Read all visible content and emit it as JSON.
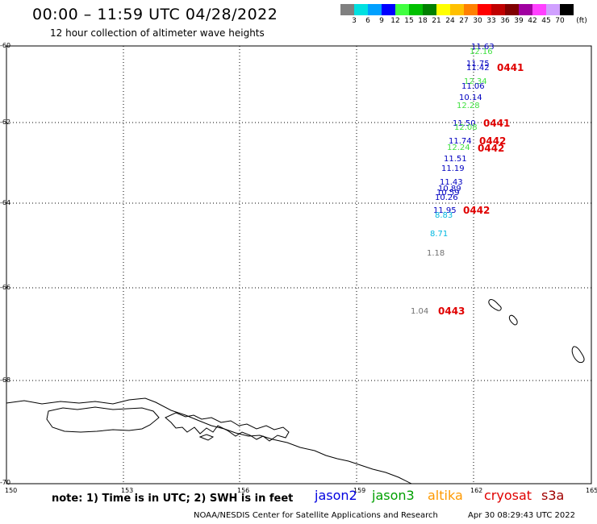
{
  "header": {
    "title": "00:00 – 11:59 UTC 04/28/2022",
    "subtitle": "12 hour collection of altimeter wave heights"
  },
  "legend": {
    "unit": "(ft)",
    "colors": [
      "#808080",
      "#00e0e0",
      "#00a0ff",
      "#0000ff",
      "#40ff40",
      "#00c000",
      "#008000",
      "#ffff00",
      "#ffc000",
      "#ff8000",
      "#ff0000",
      "#c00000",
      "#800000",
      "#a000a0",
      "#ff40ff",
      "#d0a0ff",
      "#000000"
    ],
    "labels": [
      "3",
      "6",
      "9",
      "12",
      "15",
      "18",
      "21",
      "24",
      "27",
      "30",
      "33",
      "36",
      "39",
      "42",
      "45",
      "70"
    ]
  },
  "axes": {
    "lon_ticks": [
      "150",
      "153",
      "156",
      "159",
      "162",
      "165"
    ],
    "lat_ticks": [
      "-60",
      "-62",
      "-64",
      "-66",
      "-68",
      "-70"
    ]
  },
  "observations": [
    {
      "text": "11.63",
      "color": "#0000c0"
    },
    {
      "text": "12.16",
      "color": "#40e040"
    },
    {
      "text": "11.75",
      "color": "#0000c0"
    },
    {
      "text": "11.42",
      "color": "#0000c0"
    },
    {
      "text": "12.34",
      "color": "#40e040"
    },
    {
      "text": "11.06",
      "color": "#0000c0"
    },
    {
      "text": "10.14",
      "color": "#0000c0"
    },
    {
      "text": "12.28",
      "color": "#40e040"
    },
    {
      "text": "11.50",
      "color": "#0000c0"
    },
    {
      "text": "12.08",
      "color": "#40e040"
    },
    {
      "text": "11.74",
      "color": "#0000c0"
    },
    {
      "text": "12.24",
      "color": "#40e040"
    },
    {
      "text": "11.51",
      "color": "#0000c0"
    },
    {
      "text": "11.19",
      "color": "#0000c0"
    },
    {
      "text": "11.43",
      "color": "#0000c0"
    },
    {
      "text": "10.89",
      "color": "#0000c0"
    },
    {
      "text": "10.59",
      "color": "#0000c0"
    },
    {
      "text": "10.26",
      "color": "#0000c0"
    },
    {
      "text": "11.95",
      "color": "#0000c0"
    },
    {
      "text": "8.83",
      "color": "#00b8e0"
    },
    {
      "text": "8.71",
      "color": "#00b8e0"
    },
    {
      "text": "1.18",
      "color": "#707070"
    },
    {
      "text": "1.04",
      "color": "#707070"
    }
  ],
  "pass_labels": [
    "0441",
    "0441",
    "0442",
    "0442",
    "0442",
    "0443"
  ],
  "satellites": [
    {
      "name": "jason2",
      "color": "#0000e0"
    },
    {
      "name": "jason3",
      "color": "#00a000"
    },
    {
      "name": "altika",
      "color": "#ff9900"
    },
    {
      "name": "cryosat",
      "color": "#e00000"
    },
    {
      "name": "s3a",
      "color": "#a00000"
    }
  ],
  "footer": {
    "note": "note: 1) Time is in UTC; 2) SWH is in feet",
    "credit": "NOAA/NESDIS Center for Satellite Applications and Research",
    "timestamp": "Apr 30 08:29:43 UTC 2022"
  }
}
